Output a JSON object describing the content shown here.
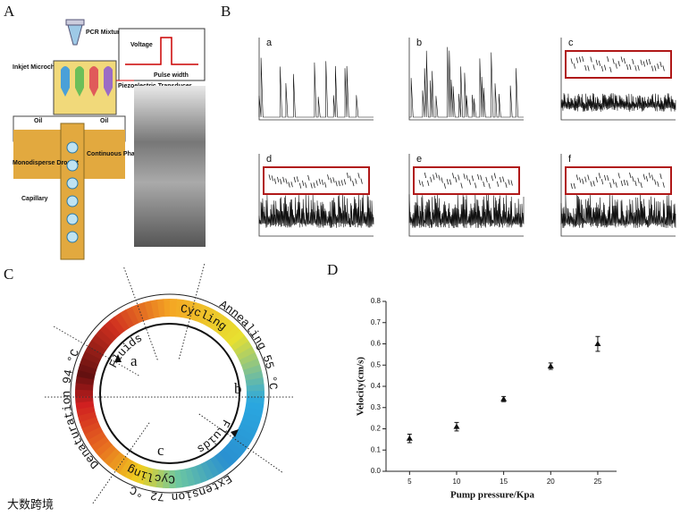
{
  "panel_labels": [
    "A",
    "B",
    "C",
    "D"
  ],
  "panel_a": {
    "pcr_mixture": "PCR Mixture",
    "inkjet_microchip": "Inkjet Microchip",
    "voltage": "Voltage",
    "pulse_width": "Pulse width",
    "transducer": "Piezoelectric Transducer",
    "oil_left": "Oil",
    "oil_right": "Oil",
    "droplet": "Monodisperse Droplet",
    "continuous_phase": "Continuous Phase",
    "capillary": "Capillary"
  },
  "panel_b": {
    "subplots": [
      "a",
      "b",
      "c",
      "d",
      "e",
      "f"
    ]
  },
  "panel_c": {
    "denaturation": "Denaturation 94 °C",
    "annealing": "Annealing 55 °C",
    "extension": "Extension 72 °C",
    "cycling_top": "Cycling",
    "cycling_bottom": "Cycling",
    "fluids_top": "Fluids",
    "fluids_bottom": "Fluids",
    "a": "a",
    "b": "b",
    "c": "c"
  },
  "watermark": "大数跨境",
  "chart_data": {
    "type": "scatter",
    "x_label": "Pump pressure/Kpa",
    "y_label": "Velocity(cm/s)",
    "x": [
      5,
      10,
      15,
      20,
      25
    ],
    "values": [
      0.155,
      0.21,
      0.34,
      0.495,
      0.6
    ],
    "errors": [
      0.02,
      0.02,
      0.012,
      0.015,
      0.035
    ],
    "color": "#111111",
    "marker": "triangle",
    "xlim": [
      2.5,
      27
    ],
    "ylim": [
      0,
      0.8
    ],
    "xticks": [
      5,
      10,
      15,
      20,
      25
    ],
    "yticks": [
      {
        "value": 0,
        "label": "0.0"
      },
      0.1,
      0.2,
      0.3,
      0.4,
      0.5,
      0.6,
      0.7,
      0.8
    ]
  }
}
